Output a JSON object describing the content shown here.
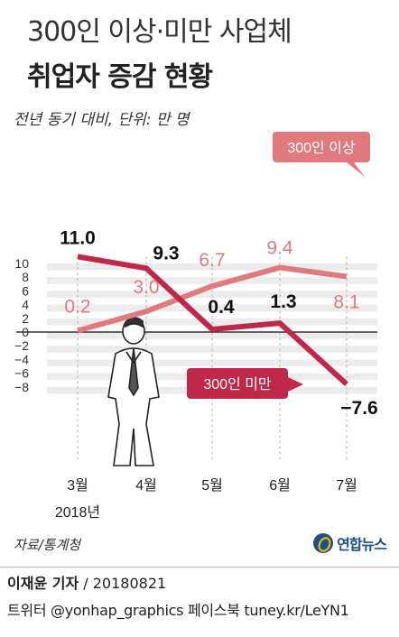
{
  "header": {
    "title_line1": "300인 이상·미만 사업체",
    "title_line2": "취업자 증감 현황",
    "subtitle": "전년 동기 대비, 단위: 만 명"
  },
  "chart_data": {
    "type": "line",
    "categories": [
      "3월",
      "4월",
      "5월",
      "6월",
      "7월"
    ],
    "category_sublabel": "2018년",
    "series": [
      {
        "name": "300인 이상",
        "values": [
          0.2,
          3.0,
          6.7,
          9.4,
          8.1
        ],
        "value_labels": [
          "0.2",
          "3.0",
          "6.7",
          "9.4",
          "8.1"
        ],
        "color": "#e07a7e"
      },
      {
        "name": "300인 미만",
        "values": [
          11.0,
          9.3,
          0.4,
          1.3,
          -7.6
        ],
        "value_labels": [
          "11.0",
          "9.3",
          "0.4",
          "1.3",
          "−7.6"
        ],
        "color": "#c0284a"
      }
    ],
    "yticks": [
      10,
      8,
      6,
      4,
      2,
      0,
      -2,
      -4,
      -6,
      -8
    ],
    "ytick_labels": [
      "10",
      "8",
      "6",
      "4",
      "2",
      "0",
      "−2",
      "−4",
      "−6",
      "−8"
    ],
    "ylim": [
      -9,
      11
    ],
    "grid": "horizontal bands",
    "legend": "labels on lines"
  },
  "source": "자료/통계청",
  "logo_text": "연합뉴스",
  "footer": {
    "reporter": "이재윤 기자",
    "date": " / 20180821",
    "social": "트위터 @yonhap_graphics  페이스북 tuney.kr/LeYN1"
  }
}
